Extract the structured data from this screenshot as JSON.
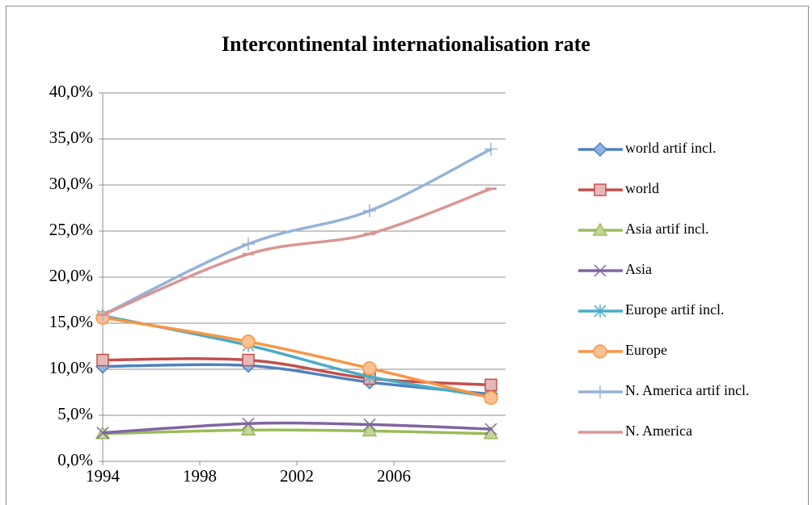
{
  "chart_data": {
    "type": "line",
    "title": "Intercontinental internationalisation rate",
    "x": [
      1994,
      2000,
      2005,
      2010
    ],
    "xlim": [
      1994,
      2010.6
    ],
    "xticks": [
      1994,
      1998,
      2002,
      2006
    ],
    "ylim": [
      0,
      40
    ],
    "yticks": [
      {
        "value": 0,
        "label": "0,0%"
      },
      {
        "value": 5,
        "label": "5,0%"
      },
      {
        "value": 10,
        "label": "10,0%"
      },
      {
        "value": 15,
        "label": "15,0%"
      },
      {
        "value": 20,
        "label": "20,0%"
      },
      {
        "value": 25,
        "label": "25,0%"
      },
      {
        "value": 30,
        "label": "30,0%"
      },
      {
        "value": 35,
        "label": "35,0%"
      },
      {
        "value": 40,
        "label": "40,0%"
      }
    ],
    "grid": true,
    "legend": "right",
    "smooth": true,
    "series": [
      {
        "name": "world artif incl.",
        "color": "#4f81bd",
        "marker": "diamond",
        "values": [
          10.3,
          10.4,
          8.6,
          7.3
        ]
      },
      {
        "name": "world",
        "color": "#c0504d",
        "marker": "square",
        "values": [
          11.0,
          11.0,
          9.0,
          8.3
        ]
      },
      {
        "name": "Asia artif incl.",
        "color": "#9bbb59",
        "marker": "triangle",
        "values": [
          3.0,
          3.4,
          3.3,
          3.0
        ]
      },
      {
        "name": "Asia",
        "color": "#8064a2",
        "marker": "x",
        "values": [
          3.1,
          4.1,
          4.0,
          3.5
        ]
      },
      {
        "name": "Europe artif incl.",
        "color": "#4bacc6",
        "marker": "star",
        "values": [
          15.8,
          12.6,
          9.2,
          7.0
        ]
      },
      {
        "name": "Europe",
        "color": "#f79646",
        "marker": "circle",
        "values": [
          15.6,
          13.0,
          10.1,
          6.9
        ]
      },
      {
        "name": "N. America artif incl.",
        "color": "#95b3d7",
        "marker": "plus",
        "values": [
          15.9,
          23.6,
          27.2,
          33.9
        ]
      },
      {
        "name": "N. America",
        "color": "#d99694",
        "marker": "dash",
        "values": [
          15.9,
          22.5,
          24.7,
          29.6
        ]
      }
    ]
  }
}
